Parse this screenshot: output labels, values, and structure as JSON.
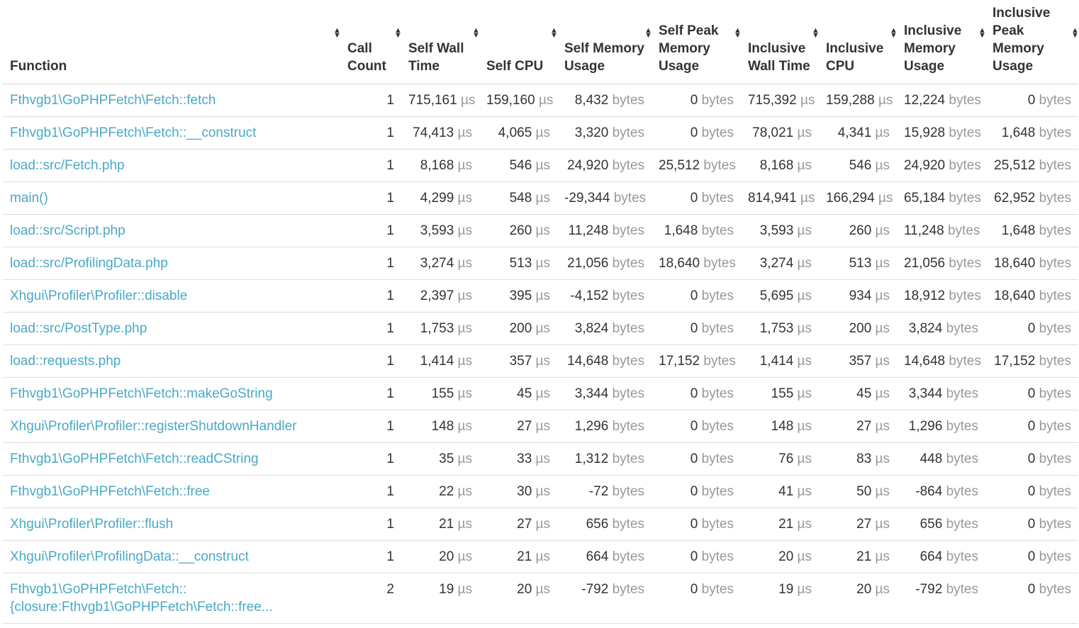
{
  "table": {
    "columns": [
      {
        "key": "function",
        "label": "Function"
      },
      {
        "key": "call_count",
        "label": "Call Count"
      },
      {
        "key": "self_wall",
        "label": "Self Wall Time"
      },
      {
        "key": "self_cpu",
        "label": "Self CPU"
      },
      {
        "key": "self_mem",
        "label": "Self Memory Usage"
      },
      {
        "key": "self_peak",
        "label": "Self Peak Memory Usage"
      },
      {
        "key": "incl_wall",
        "label": "Inclusive Wall Time"
      },
      {
        "key": "incl_cpu",
        "label": "Inclusive CPU"
      },
      {
        "key": "incl_mem",
        "label": "Inclusive Memory Usage"
      },
      {
        "key": "incl_peak",
        "label": "Inclusive Peak Memory Usage"
      }
    ],
    "sort_icon": "sort-up-down-icon",
    "units": {
      "time": "µs",
      "memory": "bytes"
    },
    "rows": [
      {
        "function": "Fthvgb1\\GoPHPFetch\\Fetch::fetch",
        "call_count": "1",
        "self_wall": "715,161",
        "self_cpu": "159,160",
        "self_mem": "8,432",
        "self_peak": "0",
        "incl_wall": "715,392",
        "incl_cpu": "159,288",
        "incl_mem": "12,224",
        "incl_peak": "0"
      },
      {
        "function": "Fthvgb1\\GoPHPFetch\\Fetch::__construct",
        "call_count": "1",
        "self_wall": "74,413",
        "self_cpu": "4,065",
        "self_mem": "3,320",
        "self_peak": "0",
        "incl_wall": "78,021",
        "incl_cpu": "4,341",
        "incl_mem": "15,928",
        "incl_peak": "1,648"
      },
      {
        "function": "load::src/Fetch.php",
        "call_count": "1",
        "self_wall": "8,168",
        "self_cpu": "546",
        "self_mem": "24,920",
        "self_peak": "25,512",
        "incl_wall": "8,168",
        "incl_cpu": "546",
        "incl_mem": "24,920",
        "incl_peak": "25,512"
      },
      {
        "function": "main()",
        "call_count": "1",
        "self_wall": "4,299",
        "self_cpu": "548",
        "self_mem": "-29,344",
        "self_peak": "0",
        "incl_wall": "814,941",
        "incl_cpu": "166,294",
        "incl_mem": "65,184",
        "incl_peak": "62,952"
      },
      {
        "function": "load::src/Script.php",
        "call_count": "1",
        "self_wall": "3,593",
        "self_cpu": "260",
        "self_mem": "11,248",
        "self_peak": "1,648",
        "incl_wall": "3,593",
        "incl_cpu": "260",
        "incl_mem": "11,248",
        "incl_peak": "1,648"
      },
      {
        "function": "load::src/ProfilingData.php",
        "call_count": "1",
        "self_wall": "3,274",
        "self_cpu": "513",
        "self_mem": "21,056",
        "self_peak": "18,640",
        "incl_wall": "3,274",
        "incl_cpu": "513",
        "incl_mem": "21,056",
        "incl_peak": "18,640"
      },
      {
        "function": "Xhgui\\Profiler\\Profiler::disable",
        "call_count": "1",
        "self_wall": "2,397",
        "self_cpu": "395",
        "self_mem": "-4,152",
        "self_peak": "0",
        "incl_wall": "5,695",
        "incl_cpu": "934",
        "incl_mem": "18,912",
        "incl_peak": "18,640"
      },
      {
        "function": "load::src/PostType.php",
        "call_count": "1",
        "self_wall": "1,753",
        "self_cpu": "200",
        "self_mem": "3,824",
        "self_peak": "0",
        "incl_wall": "1,753",
        "incl_cpu": "200",
        "incl_mem": "3,824",
        "incl_peak": "0"
      },
      {
        "function": "load::requests.php",
        "call_count": "1",
        "self_wall": "1,414",
        "self_cpu": "357",
        "self_mem": "14,648",
        "self_peak": "17,152",
        "incl_wall": "1,414",
        "incl_cpu": "357",
        "incl_mem": "14,648",
        "incl_peak": "17,152"
      },
      {
        "function": "Fthvgb1\\GoPHPFetch\\Fetch::makeGoString",
        "call_count": "1",
        "self_wall": "155",
        "self_cpu": "45",
        "self_mem": "3,344",
        "self_peak": "0",
        "incl_wall": "155",
        "incl_cpu": "45",
        "incl_mem": "3,344",
        "incl_peak": "0"
      },
      {
        "function": "Xhgui\\Profiler\\Profiler::registerShutdownHandler",
        "call_count": "1",
        "self_wall": "148",
        "self_cpu": "27",
        "self_mem": "1,296",
        "self_peak": "0",
        "incl_wall": "148",
        "incl_cpu": "27",
        "incl_mem": "1,296",
        "incl_peak": "0"
      },
      {
        "function": "Fthvgb1\\GoPHPFetch\\Fetch::readCString",
        "call_count": "1",
        "self_wall": "35",
        "self_cpu": "33",
        "self_mem": "1,312",
        "self_peak": "0",
        "incl_wall": "76",
        "incl_cpu": "83",
        "incl_mem": "448",
        "incl_peak": "0"
      },
      {
        "function": "Fthvgb1\\GoPHPFetch\\Fetch::free",
        "call_count": "1",
        "self_wall": "22",
        "self_cpu": "30",
        "self_mem": "-72",
        "self_peak": "0",
        "incl_wall": "41",
        "incl_cpu": "50",
        "incl_mem": "-864",
        "incl_peak": "0"
      },
      {
        "function": "Xhgui\\Profiler\\Profiler::flush",
        "call_count": "1",
        "self_wall": "21",
        "self_cpu": "27",
        "self_mem": "656",
        "self_peak": "0",
        "incl_wall": "21",
        "incl_cpu": "27",
        "incl_mem": "656",
        "incl_peak": "0"
      },
      {
        "function": "Xhgui\\Profiler\\ProfilingData::__construct",
        "call_count": "1",
        "self_wall": "20",
        "self_cpu": "21",
        "self_mem": "664",
        "self_peak": "0",
        "incl_wall": "20",
        "incl_cpu": "21",
        "incl_mem": "664",
        "incl_peak": "0"
      },
      {
        "function": "Fthvgb1\\GoPHPFetch\\Fetch::{closure:Fthvgb1\\GoPHPFetch\\Fetch::free...",
        "call_count": "2",
        "self_wall": "19",
        "self_cpu": "20",
        "self_mem": "-792",
        "self_peak": "0",
        "incl_wall": "19",
        "incl_cpu": "20",
        "incl_mem": "-792",
        "incl_peak": "0"
      }
    ]
  }
}
